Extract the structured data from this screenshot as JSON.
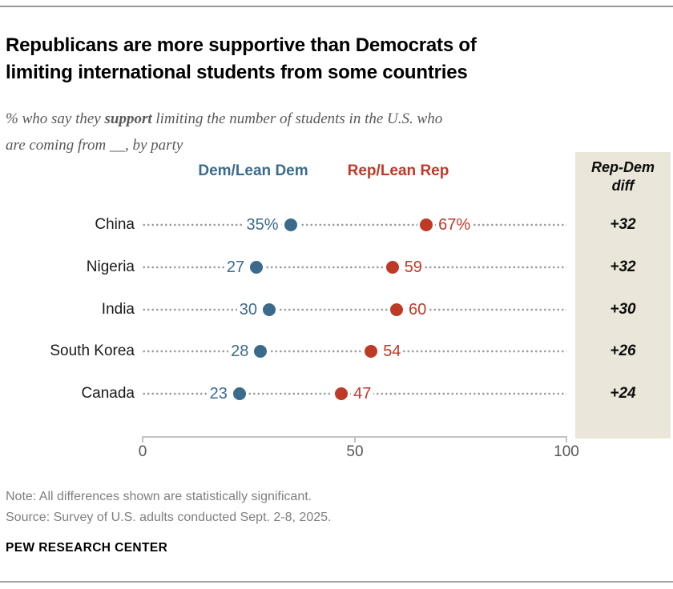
{
  "header": {
    "title": "Republicans are more supportive than Democrats of\nlimiting international students from some countries",
    "subtitle_prefix": "% who say they ",
    "subtitle_bold": "support",
    "subtitle_suffix": " limiting the number of students in the U.S. who\nare coming from __, by party"
  },
  "colors": {
    "dem_blue": "#3a6b8c",
    "rep_red": "#bf3927",
    "panel_beige": "#eae6da",
    "leader_gray": "#9d9d9d",
    "axis_gray": "#c2c2c2"
  },
  "legend": [
    {
      "label": "Dem/Lean Dem",
      "color": "#3a6b8c"
    },
    {
      "label": "Rep/Lean Rep",
      "color": "#bf3927"
    }
  ],
  "chart_data": {
    "type": "scatter",
    "subtype": "dumbbell-dot-plot",
    "categories": [
      "China",
      "Nigeria",
      "India",
      "South Korea",
      "Canada"
    ],
    "series": [
      {
        "name": "Dem/Lean Dem",
        "color": "#3a6b8c",
        "values": [
          35,
          27,
          30,
          28,
          23
        ],
        "labels": [
          "35%",
          "27",
          "30",
          "28",
          "23"
        ]
      },
      {
        "name": "Rep/Lean Rep",
        "color": "#bf3927",
        "values": [
          67,
          59,
          60,
          54,
          47
        ],
        "labels": [
          "67%",
          "59",
          "60",
          "54",
          "47"
        ]
      }
    ],
    "diff_labels": [
      "+32",
      "+32",
      "+30",
      "+26",
      "+24"
    ],
    "xlim": [
      0,
      100
    ],
    "xticks": {
      "values": [
        0,
        50,
        100
      ],
      "labels": [
        "0",
        "50",
        "100"
      ]
    },
    "grid": "dotted-leader-lines",
    "legend_position": "top"
  },
  "diff_panel": {
    "header": "Rep-Dem\ndiff",
    "values": [
      "+32",
      "+32",
      "+30",
      "+26",
      "+24"
    ]
  },
  "footer": {
    "note": "Note: All differences shown are statistically significant.",
    "source": "Source: Survey of U.S. adults conducted Sept. 2-8, 2025.",
    "brand": "PEW RESEARCH CENTER"
  }
}
